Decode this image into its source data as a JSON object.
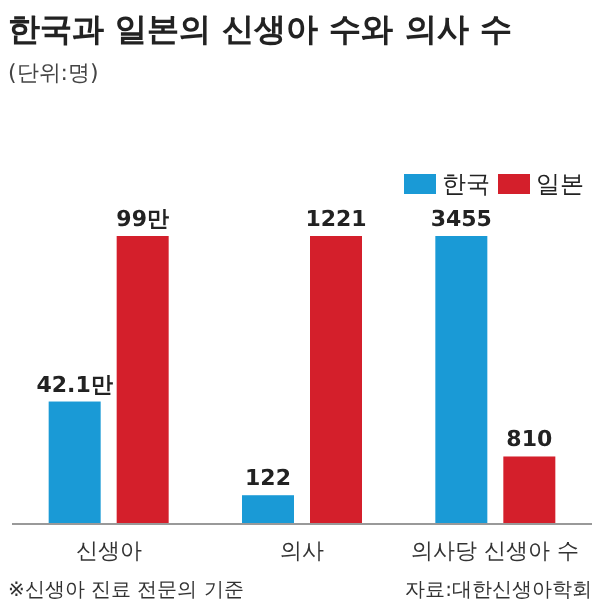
{
  "chart_data": [
    {
      "type": "bar",
      "title": "한국과 일본의 신생아 수와 의사 수",
      "subtitle": "(단위:명)",
      "categories": [
        "신생아"
      ],
      "series": [
        {
          "color": "#1a9ad6",
          "values": [
            42.1
          ],
          "value_labels": [
            "42.1만"
          ]
        },
        {
          "color": "#d41f2b",
          "values": [
            99
          ],
          "value_labels": [
            "99만"
          ]
        }
      ],
      "annotations": [
        "※신생아 진료 전문의 기준"
      ]
    },
    {
      "type": "bar",
      "categories": [
        "의사"
      ],
      "series": [
        {
          "color": "#1a9ad6",
          "values": [
            122
          ],
          "value_labels": [
            "122"
          ]
        },
        {
          "color": "#d41f2b",
          "values": [
            1221
          ],
          "value_labels": [
            "1221"
          ]
        }
      ]
    },
    {
      "type": "bar",
      "categories": [
        "의사당 신생아 수"
      ],
      "legend": "top right",
      "series": [
        {
          "name": "한국",
          "color": "#1a9ad6",
          "values": [
            3455
          ],
          "value_labels": [
            "3455"
          ]
        },
        {
          "name": "일본",
          "color": "#d41f2b",
          "values": [
            810
          ],
          "value_labels": [
            "810"
          ]
        }
      ],
      "annotations": [
        "자료:대한신생아학회"
      ]
    }
  ]
}
